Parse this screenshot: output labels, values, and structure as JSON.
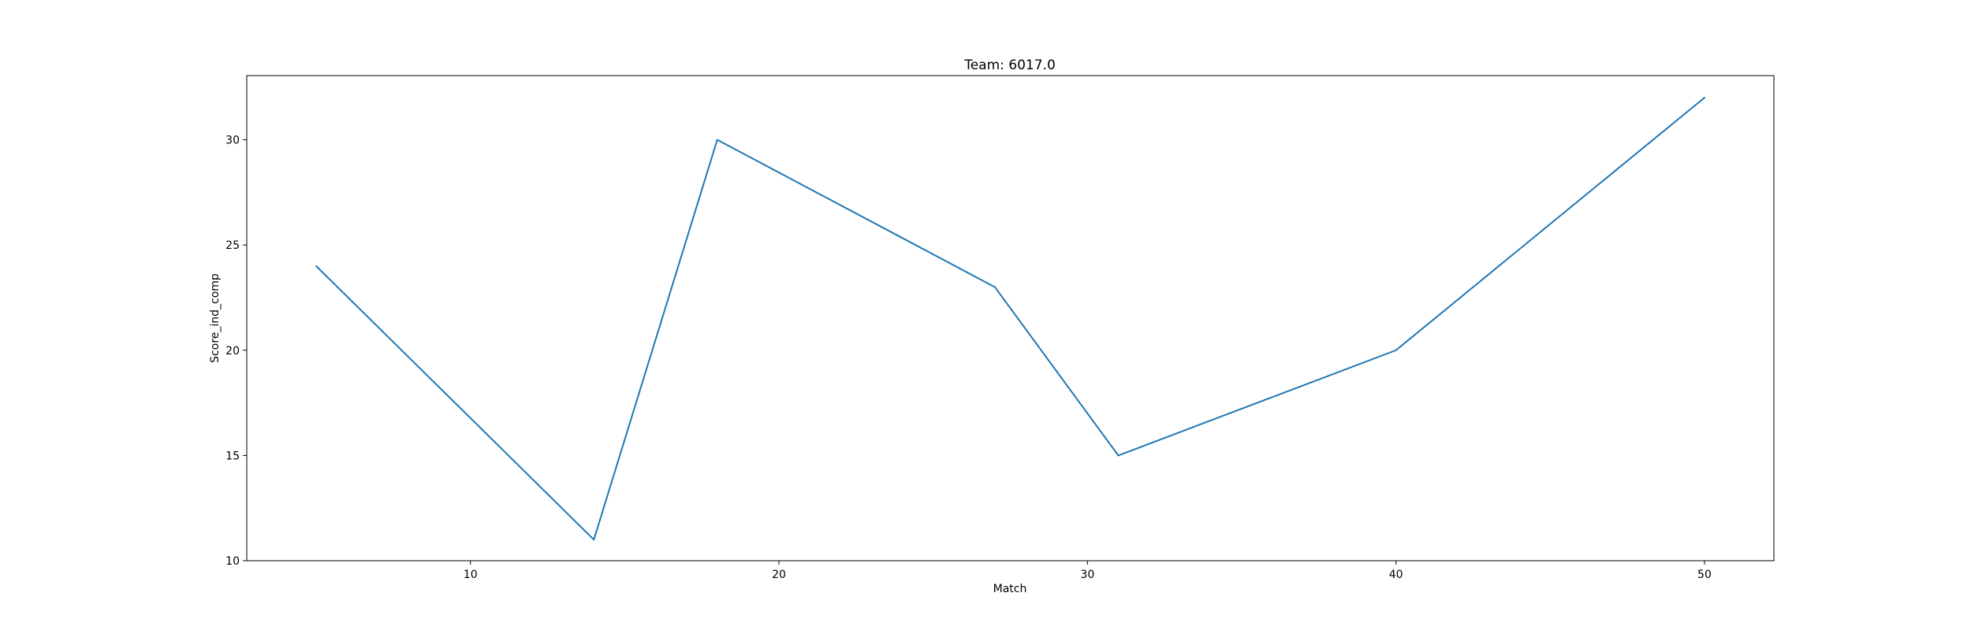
{
  "chart_data": {
    "type": "line",
    "title": "Team: 6017.0",
    "xlabel": "Match",
    "ylabel": "Score_ind_comp",
    "x": [
      5,
      14,
      18,
      27,
      31,
      40,
      50
    ],
    "series": [
      {
        "values": [
          24,
          11,
          30,
          23,
          15,
          20,
          32
        ],
        "color": "#1f77b4"
      }
    ],
    "xlim": [
      2.75,
      52.25
    ],
    "ylim": [
      10,
      33.05
    ],
    "xticks": [
      10,
      20,
      30,
      40,
      50
    ],
    "yticks": [
      10,
      15,
      20,
      25,
      30
    ],
    "grid": false,
    "legend": "none"
  }
}
